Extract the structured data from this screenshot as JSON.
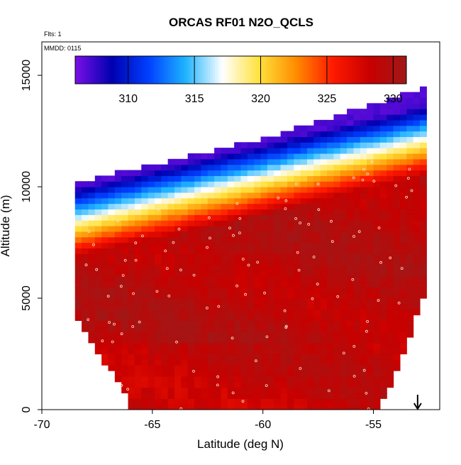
{
  "chart_data": {
    "type": "heatmap",
    "title": "ORCAS RF01 N2O_QCLS",
    "xlabel": "Latitude (deg N)",
    "ylabel": "Altitude (m)",
    "xlim": [
      -70,
      -52
    ],
    "ylim": [
      0,
      16500
    ],
    "x_ticks": [
      -70,
      -65,
      -60,
      -55
    ],
    "y_ticks": [
      0,
      5000,
      10000,
      15000
    ],
    "annotations": {
      "flights": "Flts: 1",
      "date": "MMDD: 0115"
    },
    "colorbar": {
      "range": [
        306,
        331
      ],
      "ticks": [
        310,
        315,
        320,
        325,
        330
      ],
      "colors": [
        "#7a0fe6",
        "#0000b0",
        "#0040ff",
        "#1eb4ff",
        "#ffffff",
        "#ffe23c",
        "#ff8c00",
        "#ff1a00",
        "#c80000",
        "#a01818"
      ]
    },
    "field_model": {
      "lat_range": [
        -68.5,
        -52.9
      ],
      "lat_cell": 0.3,
      "alt_cell": 250,
      "tropopause_alt_at_lat_-68": 8000,
      "tropopause_alt_at_lat_-53": 11500,
      "bottom_edge": [
        [
          -68.5,
          4000
        ],
        [
          -67.5,
          2500
        ],
        [
          -66.5,
          1000
        ],
        [
          -66,
          0
        ],
        [
          -55,
          0
        ],
        [
          -54.5,
          1000
        ],
        [
          -54,
          2000
        ],
        [
          -53.5,
          3500
        ],
        [
          -53,
          5000
        ]
      ],
      "n2o_troposphere": 329,
      "n2o_stratosphere": 307
    },
    "marker": {
      "symbol": "arrow-down",
      "lat": -53
    }
  }
}
